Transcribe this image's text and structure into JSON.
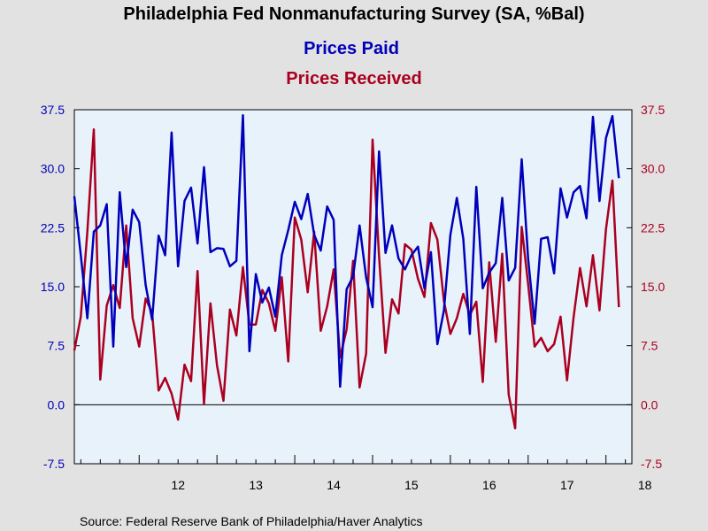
{
  "chart_data": {
    "type": "line",
    "title": "Philadelphia Fed Nonmanufacturing Survey (SA, %Bal)",
    "source": "Source:  Federal Reserve Bank of Philadelphia/Haver Analytics",
    "x_tick_labels": [
      "12",
      "13",
      "14",
      "15",
      "16",
      "17",
      "18"
    ],
    "y_ticks": [
      "37.5",
      "30.0",
      "22.5",
      "15.0",
      "7.5",
      "0.0",
      "-7.5"
    ],
    "y_tick_values": [
      37.5,
      30.0,
      22.5,
      15.0,
      7.5,
      0.0,
      -7.5
    ],
    "ylim": [
      -7.5,
      37.5
    ],
    "x_range": [
      "2011-03",
      "2018-05"
    ],
    "zero_line": true,
    "grid": false,
    "legend": "top-center",
    "colors": {
      "prices_paid": "#0000bb",
      "prices_received": "#aa0020"
    },
    "series": [
      {
        "name": "Prices Paid",
        "start": "2011-03",
        "values": [
          26.5,
          19.0,
          11.0,
          22.0,
          22.8,
          25.5,
          7.4,
          27.0,
          17.5,
          24.8,
          23.2,
          15.2,
          10.8,
          21.5,
          19.0,
          34.6,
          17.6,
          25.9,
          27.6,
          20.5,
          30.2,
          19.4,
          19.9,
          19.8,
          17.6,
          18.3,
          36.8,
          6.8,
          16.6,
          13.0,
          14.9,
          11.2,
          19.0,
          22.2,
          25.8,
          23.6,
          26.8,
          21.6,
          19.6,
          25.2,
          23.5,
          2.3,
          14.7,
          16.3,
          22.8,
          16.2,
          12.4,
          32.2,
          19.3,
          22.8,
          18.6,
          17.2,
          19.0,
          20.1,
          14.8,
          19.4,
          7.7,
          12.0,
          21.6,
          26.3,
          21.1,
          9.0,
          27.7,
          14.8,
          16.8,
          18.0,
          26.3,
          15.8,
          17.4,
          31.2,
          18.5,
          10.3,
          21.1,
          21.3,
          16.7,
          27.5,
          23.8,
          27.0,
          27.8,
          23.7,
          36.6,
          25.9,
          33.9,
          36.7,
          28.8
        ]
      },
      {
        "name": "Prices Received",
        "start": "2011-03",
        "values": [
          6.9,
          11.2,
          22.0,
          35.0,
          3.2,
          12.6,
          15.2,
          12.3,
          22.8,
          11.0,
          7.4,
          13.5,
          11.7,
          1.8,
          3.4,
          1.4,
          -1.9,
          5.1,
          3.0,
          17.0,
          0.1,
          12.9,
          5.0,
          0.5,
          12.1,
          8.8,
          17.5,
          10.2,
          10.2,
          14.6,
          12.9,
          9.4,
          16.2,
          5.5,
          23.8,
          21.0,
          14.3,
          22.0,
          9.4,
          12.5,
          17.2,
          6.0,
          9.6,
          18.3,
          2.2,
          6.5,
          33.7,
          18.9,
          6.6,
          13.4,
          11.6,
          20.4,
          19.7,
          16.0,
          13.7,
          23.1,
          21.0,
          13.2,
          9.0,
          11.0,
          14.1,
          11.4,
          13.1,
          2.9,
          18.1,
          8.0,
          19.2,
          1.3,
          -3.0,
          22.6,
          15.3,
          7.4,
          8.5,
          6.8,
          7.7,
          11.2,
          3.1,
          11.1,
          17.4,
          12.5,
          19.0,
          12.0,
          22.3,
          28.5,
          12.4
        ]
      }
    ]
  }
}
